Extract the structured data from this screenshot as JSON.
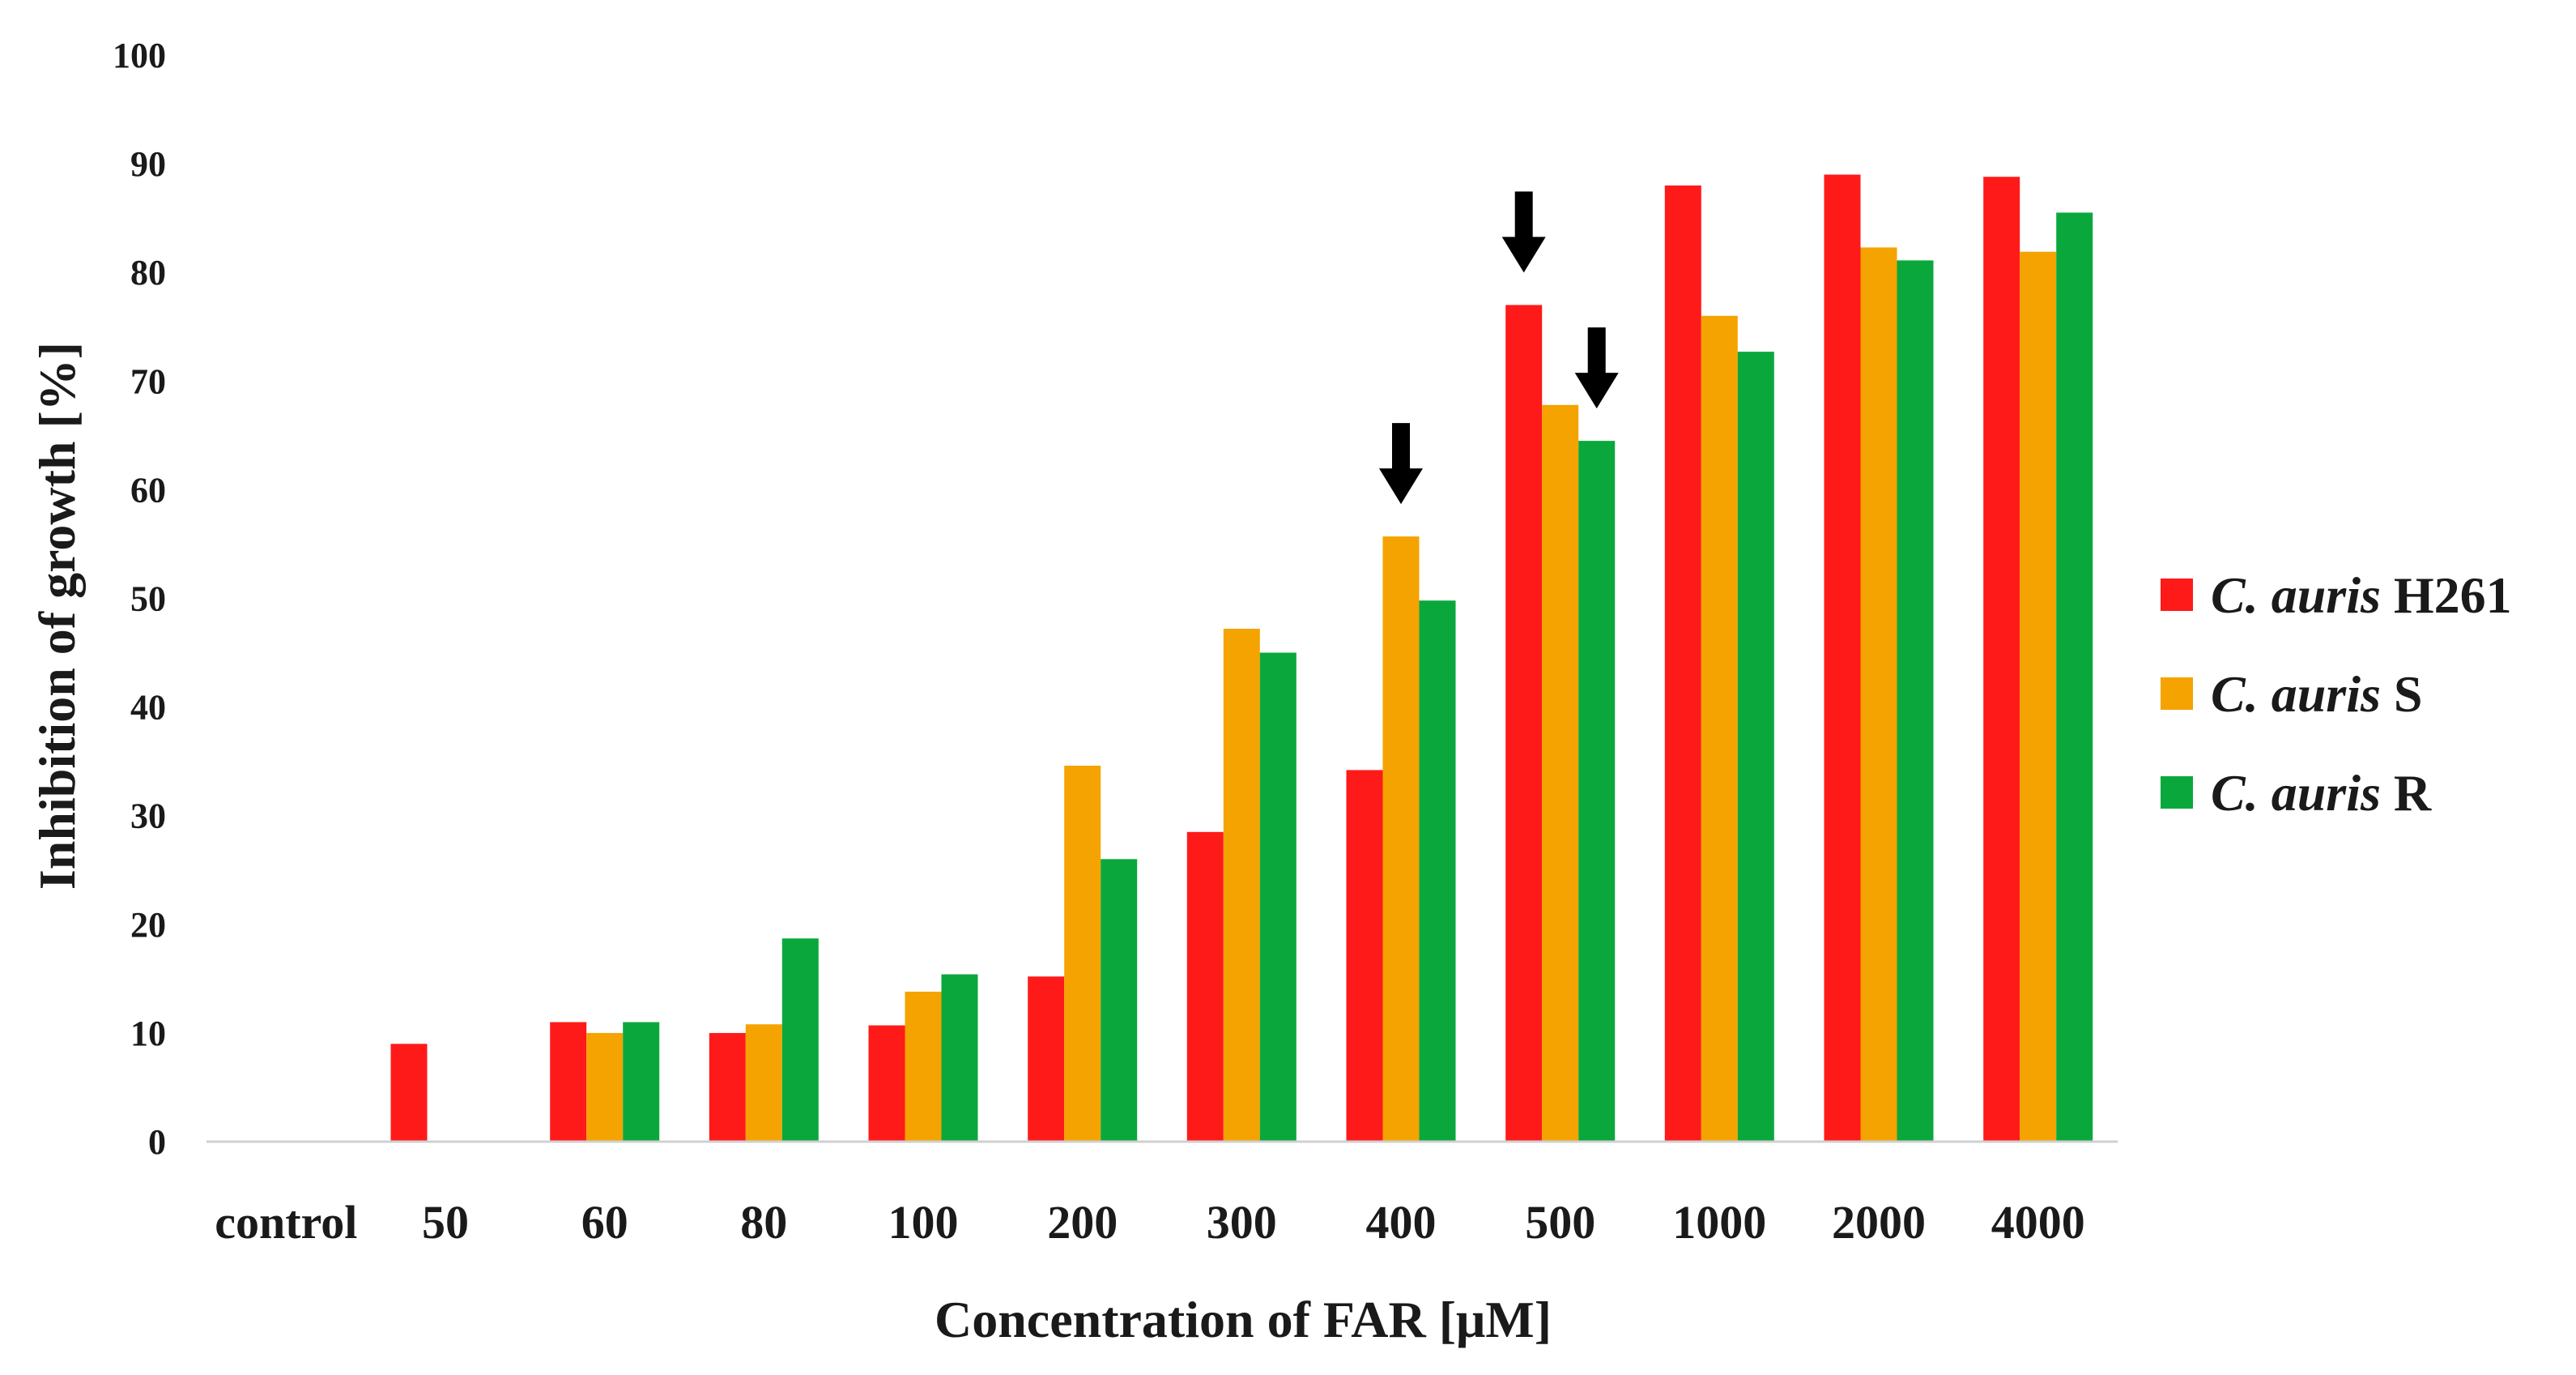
{
  "chart_data": {
    "type": "bar",
    "title": "",
    "xlabel": "Concentration of FAR [μM]",
    "ylabel": "Inhibition of growth [%]",
    "ylim": [
      0,
      100
    ],
    "yticks": [
      0,
      10,
      20,
      30,
      40,
      50,
      60,
      70,
      80,
      90,
      100
    ],
    "grid": false,
    "legend_position": "right",
    "categories": [
      "control",
      "50",
      "60",
      "80",
      "100",
      "200",
      "300",
      "400",
      "500",
      "1000",
      "2000",
      "4000"
    ],
    "series": [
      {
        "name": "C. auris H261",
        "name_italic": "C. auris",
        "name_suffix": "H261",
        "color": "#ff1a1a",
        "values": [
          0,
          9,
          11,
          10,
          10.7,
          15.2,
          28.5,
          34.2,
          77,
          88,
          89,
          88.8
        ]
      },
      {
        "name": "C. auris S",
        "name_italic": "C. auris",
        "name_suffix": "S",
        "color": "#f4a300",
        "values": [
          0,
          0,
          10,
          10.8,
          13.8,
          34.6,
          47.2,
          55.7,
          67.8,
          76,
          82.3,
          81.9
        ]
      },
      {
        "name": "C. auris R",
        "name_italic": "C. auris",
        "name_suffix": "R",
        "color": "#0aa83c",
        "values": [
          0,
          0,
          11,
          18.7,
          15.4,
          26,
          45,
          49.8,
          64.5,
          72.7,
          81.1,
          85.5
        ]
      }
    ],
    "annotations": [
      {
        "type": "arrow",
        "category": "400",
        "series": "C. auris S",
        "direction": "down"
      },
      {
        "type": "arrow",
        "category": "500",
        "series": "C. auris H261",
        "direction": "down"
      },
      {
        "type": "arrow",
        "category": "500",
        "series": "C. auris R",
        "direction": "down"
      }
    ]
  }
}
